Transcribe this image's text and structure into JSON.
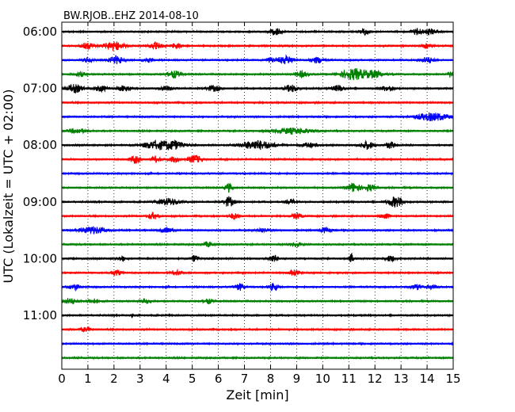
{
  "chart_data": {
    "type": "line",
    "title": "BW.RJOB..EHZ 2014-08-10",
    "xlabel": "Zeit  [min]",
    "ylabel": "UTC (Lokalzeit = UTC + 02:00)",
    "xlim": [
      0,
      15
    ],
    "x_ticks": [
      "0",
      "1",
      "2",
      "3",
      "4",
      "5",
      "6",
      "7",
      "8",
      "9",
      "10",
      "11",
      "12",
      "13",
      "14",
      "15"
    ],
    "y_ticks": [
      "06:00",
      "07:00",
      "08:00",
      "09:00",
      "10:00",
      "11:00"
    ],
    "grid": "vertical dotted",
    "row_interval_minutes": 15,
    "row_colors": [
      "#000000",
      "#ff0000",
      "#0000ff",
      "#008000"
    ],
    "rows": [
      {
        "label": "06:00",
        "color": "#000000",
        "bursts": [
          [
            8.2,
            0.7,
            0.3
          ],
          [
            11.6,
            0.5,
            0.3
          ],
          [
            13.6,
            0.6,
            0.3
          ],
          [
            14.1,
            0.5,
            0.4
          ]
        ]
      },
      {
        "label": "",
        "color": "#ff0000",
        "bursts": [
          [
            1.0,
            0.5,
            0.4
          ],
          [
            2.0,
            0.8,
            0.6
          ],
          [
            3.6,
            0.5,
            0.4
          ],
          [
            4.4,
            0.5,
            0.3
          ],
          [
            14.0,
            0.4,
            0.3
          ]
        ]
      },
      {
        "label": "",
        "color": "#0000ff",
        "bursts": [
          [
            1.0,
            0.4,
            0.3
          ],
          [
            2.1,
            0.7,
            0.5
          ],
          [
            3.3,
            0.4,
            0.3
          ],
          [
            8.0,
            0.4,
            0.3
          ],
          [
            8.6,
            0.7,
            0.5
          ],
          [
            9.8,
            0.5,
            0.4
          ],
          [
            14.0,
            0.5,
            0.4
          ]
        ]
      },
      {
        "label": "",
        "color": "#008000",
        "bursts": [
          [
            0.7,
            0.4,
            0.3
          ],
          [
            4.3,
            0.6,
            0.4
          ],
          [
            9.2,
            0.5,
            0.4
          ],
          [
            11.2,
            1.0,
            0.8
          ],
          [
            12.0,
            0.6,
            0.5
          ],
          [
            15.0,
            0.8,
            0.3
          ]
        ]
      },
      {
        "label": "07:00",
        "color": "#000000",
        "bursts": [
          [
            0.5,
            0.7,
            0.5
          ],
          [
            1.5,
            0.5,
            0.4
          ],
          [
            2.4,
            0.5,
            0.4
          ],
          [
            4.0,
            0.4,
            0.4
          ],
          [
            5.8,
            0.5,
            0.4
          ],
          [
            8.8,
            0.6,
            0.4
          ],
          [
            10.6,
            0.5,
            0.4
          ],
          [
            12.5,
            0.5,
            0.4
          ]
        ]
      },
      {
        "label": "",
        "color": "#ff0000",
        "bursts": []
      },
      {
        "label": "",
        "color": "#0000ff",
        "bursts": [
          [
            14.2,
            0.7,
            1.0
          ]
        ]
      },
      {
        "label": "",
        "color": "#008000",
        "bursts": [
          [
            0.6,
            0.4,
            0.6
          ],
          [
            8.8,
            0.5,
            1.2
          ]
        ]
      },
      {
        "label": "08:00",
        "color": "#000000",
        "bursts": [
          [
            3.6,
            0.7,
            0.8
          ],
          [
            4.3,
            0.7,
            0.6
          ],
          [
            7.5,
            0.8,
            1.0
          ],
          [
            9.5,
            0.4,
            0.5
          ],
          [
            11.7,
            0.7,
            0.4
          ],
          [
            12.6,
            0.6,
            0.3
          ]
        ]
      },
      {
        "label": "",
        "color": "#ff0000",
        "bursts": [
          [
            2.8,
            0.7,
            0.3
          ],
          [
            3.6,
            0.5,
            0.3
          ],
          [
            5.1,
            0.7,
            0.4
          ],
          [
            4.3,
            0.5,
            0.3
          ]
        ]
      },
      {
        "label": "",
        "color": "#0000ff",
        "bursts": []
      },
      {
        "label": "",
        "color": "#008000",
        "bursts": [
          [
            6.4,
            0.8,
            0.2
          ],
          [
            11.2,
            0.8,
            0.4
          ],
          [
            11.8,
            0.6,
            0.3
          ]
        ]
      },
      {
        "label": "09:00",
        "color": "#000000",
        "bursts": [
          [
            4.1,
            0.6,
            0.6
          ],
          [
            6.4,
            0.9,
            0.3
          ],
          [
            8.8,
            0.4,
            0.3
          ],
          [
            12.8,
            0.9,
            0.5
          ]
        ]
      },
      {
        "label": "",
        "color": "#ff0000",
        "bursts": [
          [
            3.5,
            0.6,
            0.3
          ],
          [
            6.6,
            0.5,
            0.3
          ],
          [
            9.0,
            0.5,
            0.3
          ],
          [
            12.4,
            0.5,
            0.3
          ]
        ]
      },
      {
        "label": "",
        "color": "#0000ff",
        "bursts": [
          [
            1.2,
            0.6,
            0.8
          ],
          [
            4.0,
            0.4,
            0.4
          ],
          [
            7.7,
            0.4,
            0.3
          ],
          [
            10.1,
            0.5,
            0.3
          ]
        ]
      },
      {
        "label": "",
        "color": "#008000",
        "bursts": [
          [
            5.6,
            0.4,
            0.3
          ],
          [
            9.0,
            0.4,
            0.3
          ]
        ]
      },
      {
        "label": "10:00",
        "color": "#000000",
        "bursts": [
          [
            2.3,
            0.5,
            0.2
          ],
          [
            5.1,
            0.6,
            0.2
          ],
          [
            8.1,
            0.6,
            0.3
          ],
          [
            11.1,
            1.0,
            0.1
          ],
          [
            12.6,
            0.5,
            0.3
          ]
        ]
      },
      {
        "label": "",
        "color": "#ff0000",
        "bursts": [
          [
            2.1,
            0.5,
            0.3
          ],
          [
            4.4,
            0.4,
            0.3
          ],
          [
            8.9,
            0.5,
            0.3
          ]
        ]
      },
      {
        "label": "",
        "color": "#0000ff",
        "bursts": [
          [
            0.5,
            0.5,
            0.3
          ],
          [
            6.8,
            0.6,
            0.3
          ],
          [
            8.1,
            0.6,
            0.3
          ],
          [
            13.6,
            0.5,
            0.3
          ],
          [
            14.2,
            0.4,
            0.3
          ]
        ]
      },
      {
        "label": "",
        "color": "#008000",
        "bursts": [
          [
            0.3,
            0.5,
            0.4
          ],
          [
            1.2,
            0.4,
            0.4
          ],
          [
            3.2,
            0.4,
            0.3
          ],
          [
            5.6,
            0.4,
            0.3
          ]
        ]
      },
      {
        "label": "11:00",
        "color": "#000000",
        "bursts": [
          [
            2.7,
            0.4,
            0.05
          ]
        ]
      },
      {
        "label": "",
        "color": "#ff0000",
        "bursts": [
          [
            0.9,
            0.4,
            0.3
          ]
        ]
      },
      {
        "label": "",
        "color": "#0000ff",
        "bursts": []
      },
      {
        "label": "",
        "color": "#008000",
        "bursts": []
      }
    ]
  }
}
